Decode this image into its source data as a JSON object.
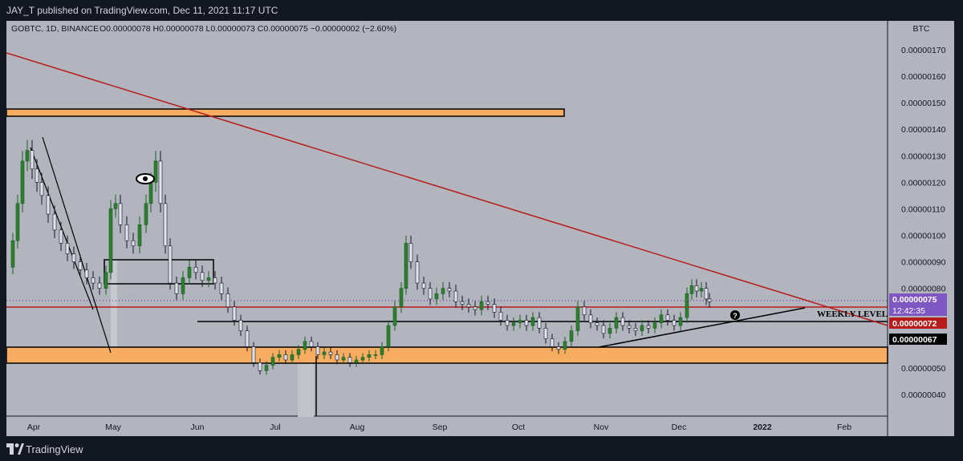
{
  "header": {
    "published": "JAY_T published on TradingView.com, Dec 11, 2021 11:17 UTC"
  },
  "footer": {
    "brand": "TradingView"
  },
  "chart_data": {
    "type": "candlestick",
    "symbol_info": "GOBTC, 1D, BINANCE",
    "ohlc_label": "O0.00000078 H0.00000078 L0.00000073 C0.00000075 −0.00000002 (−2.60%)",
    "currency": "BTC",
    "y_ticks": [
      "0.00000170",
      "0.00000160",
      "0.00000150",
      "0.00000140",
      "0.00000130",
      "0.00000120",
      "0.00000110",
      "0.00000100",
      "0.00000090",
      "0.00000080",
      "0.00000050",
      "0.00000040"
    ],
    "x_ticks": [
      "Apr",
      "May",
      "Jun",
      "Jul",
      "Aug",
      "Sep",
      "Oct",
      "Nov",
      "Dec",
      "2022",
      "Feb"
    ],
    "price_labels": [
      {
        "text": "0.00000075",
        "color": "#7e57c2"
      },
      {
        "text": "12:42:35",
        "color": "#7e57c2"
      },
      {
        "text": "0.00000072",
        "color": "#b71c1c"
      },
      {
        "text": "0.00000067",
        "color": "#000000"
      }
    ],
    "annotations": [
      "WEEKLY LEVEL"
    ],
    "ylim": [
      3.5e-07,
      1.75e-06
    ],
    "candles": []
  }
}
